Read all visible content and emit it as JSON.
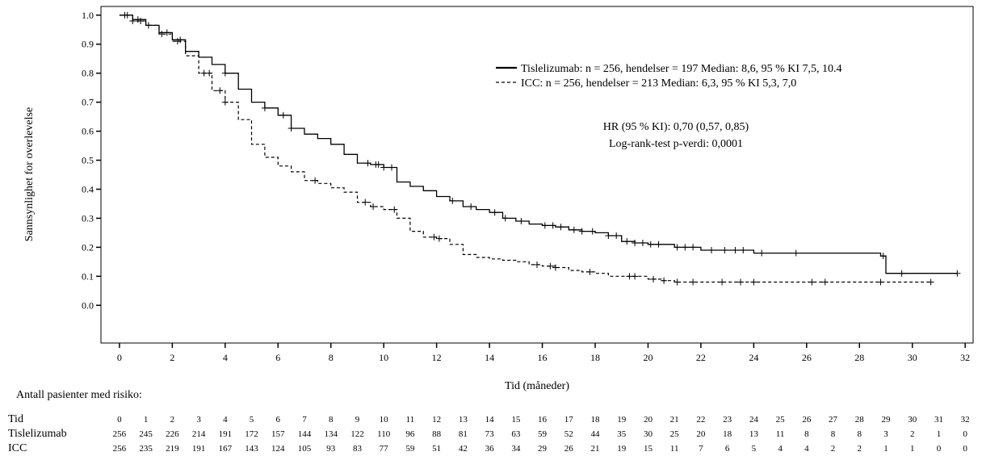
{
  "chart_data": {
    "type": "line",
    "title": "",
    "xlabel": "Tid (måneder)",
    "ylabel": "Sannsynlighet for overlevelse",
    "xlim": [
      -0.7,
      32.3
    ],
    "ylim": [
      -0.13,
      1.03
    ],
    "x_ticks": [
      0,
      2,
      4,
      6,
      8,
      10,
      12,
      14,
      16,
      18,
      20,
      22,
      24,
      26,
      28,
      30,
      32
    ],
    "y_ticks": [
      0.0,
      0.1,
      0.2,
      0.3,
      0.4,
      0.5,
      0.6,
      0.7,
      0.8,
      0.9,
      1.0
    ],
    "grid": false,
    "legend_position": "top-right",
    "series": [
      {
        "name": "Tislelizumab: n = 256, hendelser = 197 Median: 8,6, 95 % KI 7,5, 10.4",
        "line_style": "solid",
        "x": [
          0,
          0.5,
          1,
          1.5,
          2,
          2.5,
          3,
          3.5,
          4,
          4.5,
          5,
          5.5,
          6,
          6.5,
          7,
          7.5,
          8,
          8.5,
          9,
          9.5,
          10,
          10.5,
          11,
          11.5,
          12,
          12.5,
          13,
          13.5,
          14,
          14.5,
          15,
          15.5,
          16,
          16.5,
          17,
          17.5,
          18,
          18.5,
          19,
          19.5,
          20,
          20.5,
          21,
          22,
          23,
          24,
          25,
          26,
          27,
          28,
          28.8,
          29,
          30,
          31,
          31.7
        ],
        "y": [
          1.0,
          0.985,
          0.965,
          0.94,
          0.915,
          0.875,
          0.855,
          0.83,
          0.8,
          0.745,
          0.7,
          0.68,
          0.655,
          0.61,
          0.59,
          0.575,
          0.555,
          0.52,
          0.49,
          0.485,
          0.475,
          0.425,
          0.41,
          0.395,
          0.375,
          0.36,
          0.34,
          0.33,
          0.32,
          0.3,
          0.29,
          0.28,
          0.275,
          0.27,
          0.26,
          0.255,
          0.25,
          0.24,
          0.22,
          0.215,
          0.21,
          0.21,
          0.2,
          0.19,
          0.19,
          0.18,
          0.18,
          0.18,
          0.18,
          0.18,
          0.17,
          0.11,
          0.11,
          0.11,
          0.11
        ],
        "censor_x": [
          0.3,
          0.7,
          1.1,
          1.8,
          2.3,
          4.0,
          5.5,
          6.2,
          6.5,
          9.4,
          9.7,
          9.8,
          10.0,
          10.3,
          12.6,
          13.3,
          14.2,
          14.6,
          15.2,
          16.1,
          16.4,
          16.7,
          17.2,
          17.5,
          17.9,
          18.5,
          18.8,
          19.2,
          19.5,
          19.8,
          20.1,
          20.4,
          21.1,
          21.4,
          21.7,
          22.4,
          22.9,
          23.3,
          23.6,
          24.3,
          25.6,
          28.9,
          29.6,
          31.7
        ]
      },
      {
        "name": "ICC: n = 256, hendelser = 213 Median: 6,3, 95 % KI 5,3, 7,0",
        "line_style": "dashed",
        "x": [
          0,
          0.5,
          1,
          1.5,
          2,
          2.5,
          3,
          3.5,
          4,
          4.5,
          5,
          5.5,
          6,
          6.5,
          7,
          7.5,
          8,
          8.5,
          9,
          9.5,
          10,
          10.5,
          11,
          11.5,
          12,
          12.5,
          13,
          13.5,
          14,
          14.5,
          15,
          15.5,
          16,
          16.5,
          17,
          17.5,
          18,
          18.5,
          19,
          19.5,
          20,
          20.5,
          21,
          22,
          23,
          24,
          25,
          26,
          27,
          28,
          29,
          30,
          30.7
        ],
        "y": [
          1.0,
          0.98,
          0.965,
          0.935,
          0.91,
          0.86,
          0.8,
          0.74,
          0.7,
          0.64,
          0.555,
          0.51,
          0.48,
          0.46,
          0.43,
          0.42,
          0.405,
          0.39,
          0.355,
          0.34,
          0.33,
          0.3,
          0.255,
          0.235,
          0.23,
          0.21,
          0.175,
          0.165,
          0.16,
          0.155,
          0.15,
          0.14,
          0.135,
          0.13,
          0.12,
          0.115,
          0.11,
          0.1,
          0.1,
          0.1,
          0.09,
          0.085,
          0.08,
          0.08,
          0.08,
          0.08,
          0.08,
          0.08,
          0.08,
          0.08,
          0.08,
          0.08,
          0.08
        ],
        "censor_x": [
          0.2,
          0.5,
          0.8,
          1.6,
          2.2,
          3.2,
          3.4,
          3.8,
          4.0,
          7.4,
          9.3,
          9.6,
          10.4,
          11.9,
          12.1,
          15.8,
          16.3,
          16.5,
          17.8,
          19.3,
          19.5,
          20.2,
          20.6,
          21.1,
          21.7,
          22.8,
          23.5,
          24.0,
          26.2,
          26.7,
          28.8,
          30.7
        ]
      }
    ],
    "annotations": [
      "HR (95 % KI): 0,70 (0,57, 0,85)",
      "Log-rank-test p-verdi: 0,0001"
    ],
    "risk_table": {
      "title": "Antall pasienter med risiko:",
      "header": "Tid",
      "times": [
        "0",
        "1",
        "2",
        "3",
        "4",
        "5",
        "6",
        "7",
        "8",
        "9",
        "10",
        "11",
        "12",
        "13",
        "14",
        "15",
        "16",
        "17",
        "18",
        "19",
        "20",
        "21",
        "22",
        "23",
        "24",
        "25",
        "26",
        "27",
        "28",
        "29",
        "30",
        "31",
        "32"
      ],
      "rows": [
        {
          "label": "Tislelizumab",
          "values": [
            "256",
            "245",
            "226",
            "214",
            "191",
            "172",
            "157",
            "144",
            "134",
            "122",
            "110",
            "96",
            "88",
            "81",
            "73",
            "63",
            "59",
            "52",
            "44",
            "35",
            "30",
            "25",
            "20",
            "18",
            "13",
            "11",
            "8",
            "8",
            "8",
            "3",
            "2",
            "1",
            "0"
          ]
        },
        {
          "label": "ICC",
          "values": [
            "256",
            "235",
            "219",
            "191",
            "167",
            "143",
            "124",
            "105",
            "93",
            "83",
            "77",
            "59",
            "51",
            "42",
            "36",
            "34",
            "29",
            "26",
            "21",
            "19",
            "15",
            "11",
            "7",
            "6",
            "5",
            "4",
            "4",
            "2",
            "2",
            "1",
            "1",
            "0",
            "0"
          ]
        }
      ]
    }
  }
}
